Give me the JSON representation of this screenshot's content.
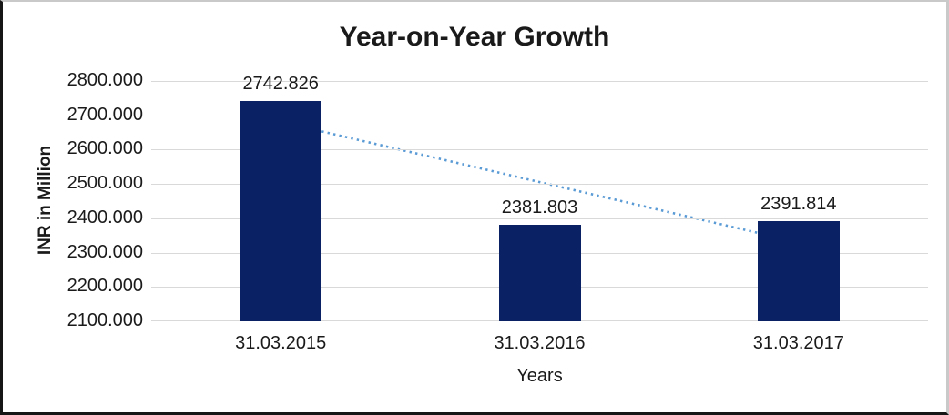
{
  "chart_data": {
    "type": "bar",
    "title": "Year-on-Year Growth",
    "xlabel": "Years",
    "ylabel": "INR in Million",
    "categories": [
      "31.03.2015",
      "31.03.2016",
      "31.03.2017"
    ],
    "values": [
      2742.826,
      2381.803,
      2391.814
    ],
    "data_labels": [
      "2742.826",
      "2381.803",
      "2391.814"
    ],
    "ylim": [
      2100,
      2800
    ],
    "ytick_step": 100,
    "ytick_labels": [
      "2100.000",
      "2200.000",
      "2300.000",
      "2400.000",
      "2500.000",
      "2600.000",
      "2700.000",
      "2800.000"
    ],
    "grid": true,
    "legend": "none",
    "colors": {
      "bar": "#0A2264",
      "trendline": "#5B9BD5",
      "gridline": "#D9D9D9",
      "text": "#1A1A1A"
    },
    "trendline": {
      "type": "linear",
      "style": "dotted",
      "color": "#5B9BD5",
      "endpoint_values": [
        2681.0,
        2330.0
      ]
    }
  }
}
